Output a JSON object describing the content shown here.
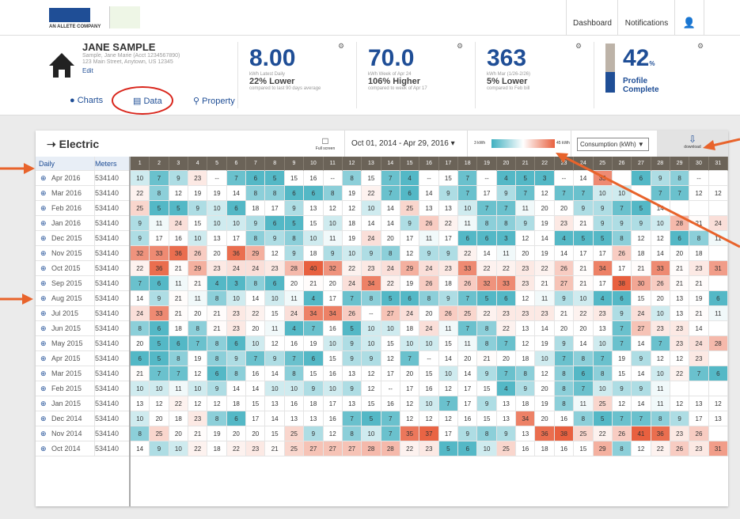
{
  "header": {
    "brand": "AN ALLETE COMPANY",
    "nav": [
      "Dashboard",
      "Notifications"
    ]
  },
  "profile": {
    "name": "JANE SAMPLE",
    "account": "Sample, Jane Marie (Acct 1234567890)",
    "address": "123 Main Street, Anytown, US 12345",
    "edit": "Edit",
    "tabs": [
      "Charts",
      "Data",
      "Property"
    ]
  },
  "stats": [
    {
      "value": "8.00",
      "label": "kWh Latest Daily",
      "change": "22% Lower",
      "note": "compared to last 90 days average"
    },
    {
      "value": "70.0",
      "label": "kWh Week of Apr 24",
      "change": "106% Higher",
      "note": "compared to week of Apr 17"
    },
    {
      "value": "363",
      "label": "kWh Mar (1/26-2/26)",
      "change": "5% Lower",
      "note": "compared to Feb bill"
    }
  ],
  "completion": {
    "value": 42,
    "unit": "%",
    "label": [
      "Profile",
      "Complete"
    ]
  },
  "toolbar": {
    "title": "Electric",
    "fullscreen": "Full screen",
    "date_range": "Oct 01, 2014 - Apr 29, 2016",
    "scale_min": {
      "value": 3,
      "label": "3 kWh"
    },
    "scale_max": {
      "value": 45,
      "label": "45 kWh"
    },
    "measure": "Consumption (kWh)",
    "download": "download"
  },
  "table": {
    "period_header": "Daily",
    "meter_header": "Meters",
    "days": [
      1,
      2,
      3,
      4,
      5,
      6,
      7,
      8,
      9,
      10,
      11,
      12,
      13,
      14,
      15,
      16,
      17,
      18,
      19,
      20,
      21,
      22,
      23,
      24,
      25,
      26,
      27,
      28,
      29,
      30,
      31
    ],
    "rows": [
      {
        "period": "Apr 2016",
        "meter": "534140",
        "values": [
          10,
          7,
          9,
          23,
          "--",
          7,
          6,
          5,
          15,
          16,
          "--",
          8,
          15,
          7,
          4,
          "--",
          15,
          7,
          "--",
          4,
          5,
          3,
          "--",
          14,
          33,
          null,
          6,
          9,
          8,
          "--",
          null
        ]
      },
      {
        "period": "Mar 2016",
        "meter": "534140",
        "values": [
          22,
          8,
          12,
          19,
          19,
          14,
          8,
          8,
          6,
          6,
          8,
          19,
          22,
          7,
          6,
          14,
          9,
          7,
          17,
          9,
          7,
          12,
          7,
          7,
          10,
          10,
          null,
          7,
          7,
          12,
          12
        ]
      },
      {
        "period": "Feb 2016",
        "meter": "534140",
        "values": [
          25,
          5,
          5,
          9,
          10,
          6,
          18,
          17,
          9,
          13,
          12,
          12,
          10,
          14,
          25,
          13,
          13,
          10,
          7,
          7,
          11,
          20,
          20,
          9,
          9,
          7,
          5,
          14,
          null,
          null,
          null
        ]
      },
      {
        "period": "Jan 2016",
        "meter": "534140",
        "values": [
          9,
          11,
          24,
          15,
          10,
          10,
          9,
          6,
          5,
          15,
          10,
          18,
          14,
          14,
          9,
          26,
          22,
          11,
          8,
          8,
          9,
          19,
          23,
          21,
          9,
          9,
          9,
          10,
          28,
          21,
          24
        ]
      },
      {
        "period": "Dec 2015",
        "meter": "534140",
        "values": [
          9,
          17,
          16,
          10,
          13,
          17,
          8,
          9,
          8,
          10,
          11,
          19,
          24,
          20,
          17,
          11,
          17,
          6,
          6,
          3,
          12,
          14,
          4,
          5,
          5,
          8,
          12,
          12,
          6,
          8,
          11
        ]
      },
      {
        "period": "Nov 2015",
        "meter": "534140",
        "values": [
          32,
          33,
          36,
          26,
          20,
          36,
          29,
          12,
          9,
          18,
          9,
          10,
          9,
          8,
          12,
          9,
          9,
          22,
          14,
          11,
          20,
          19,
          14,
          17,
          17,
          26,
          18,
          14,
          20,
          18,
          null
        ]
      },
      {
        "period": "Oct 2015",
        "meter": "534140",
        "values": [
          22,
          36,
          21,
          29,
          23,
          24,
          24,
          23,
          28,
          40,
          32,
          22,
          23,
          24,
          29,
          24,
          23,
          33,
          22,
          22,
          23,
          22,
          26,
          21,
          34,
          17,
          21,
          33,
          21,
          23,
          31
        ]
      },
      {
        "period": "Sep 2015",
        "meter": "534140",
        "values": [
          7,
          6,
          11,
          21,
          4,
          3,
          8,
          6,
          20,
          21,
          20,
          24,
          34,
          22,
          19,
          26,
          18,
          26,
          32,
          33,
          23,
          21,
          27,
          21,
          17,
          38,
          30,
          26,
          21,
          21,
          null
        ]
      },
      {
        "period": "Aug 2015",
        "meter": "534140",
        "values": [
          14,
          9,
          21,
          11,
          8,
          10,
          14,
          10,
          11,
          4,
          17,
          7,
          8,
          5,
          6,
          8,
          9,
          7,
          5,
          6,
          12,
          11,
          9,
          10,
          4,
          6,
          15,
          20,
          13,
          19,
          6
        ]
      },
      {
        "period": "Jul 2015",
        "meter": "534140",
        "values": [
          24,
          33,
          21,
          20,
          21,
          23,
          22,
          15,
          24,
          34,
          34,
          26,
          "--",
          27,
          24,
          20,
          26,
          25,
          22,
          23,
          23,
          23,
          21,
          22,
          23,
          9,
          24,
          10,
          13,
          21,
          11
        ]
      },
      {
        "period": "Jun 2015",
        "meter": "534140",
        "values": [
          8,
          6,
          18,
          8,
          21,
          23,
          20,
          11,
          4,
          7,
          16,
          5,
          10,
          10,
          18,
          24,
          11,
          7,
          8,
          22,
          13,
          14,
          20,
          20,
          13,
          7,
          27,
          23,
          23,
          14,
          null
        ]
      },
      {
        "period": "May 2015",
        "meter": "534140",
        "values": [
          20,
          5,
          6,
          7,
          8,
          6,
          10,
          12,
          16,
          19,
          10,
          9,
          10,
          15,
          10,
          10,
          15,
          11,
          8,
          7,
          12,
          19,
          9,
          14,
          10,
          7,
          14,
          7,
          23,
          24,
          28
        ]
      },
      {
        "period": "Apr 2015",
        "meter": "534140",
        "values": [
          6,
          5,
          8,
          19,
          8,
          9,
          7,
          9,
          7,
          6,
          15,
          9,
          9,
          12,
          7,
          "--",
          14,
          20,
          21,
          20,
          18,
          10,
          7,
          8,
          7,
          19,
          9,
          12,
          12,
          23,
          null
        ]
      },
      {
        "period": "Mar 2015",
        "meter": "534140",
        "values": [
          21,
          7,
          7,
          12,
          6,
          8,
          16,
          14,
          8,
          15,
          16,
          13,
          12,
          17,
          20,
          15,
          10,
          14,
          9,
          7,
          8,
          12,
          8,
          6,
          8,
          15,
          14,
          10,
          22,
          7,
          6
        ]
      },
      {
        "period": "Feb 2015",
        "meter": "534140",
        "values": [
          10,
          10,
          11,
          10,
          9,
          14,
          14,
          10,
          10,
          9,
          10,
          9,
          12,
          "--",
          17,
          16,
          12,
          17,
          15,
          4,
          9,
          20,
          8,
          7,
          10,
          9,
          9,
          11,
          null,
          null,
          null
        ]
      },
      {
        "period": "Jan 2015",
        "meter": "534140",
        "values": [
          13,
          12,
          22,
          12,
          12,
          18,
          15,
          13,
          16,
          18,
          17,
          13,
          15,
          16,
          12,
          10,
          7,
          17,
          9,
          13,
          18,
          19,
          8,
          11,
          25,
          12,
          14,
          11,
          12,
          13,
          12
        ]
      },
      {
        "period": "Dec 2014",
        "meter": "534140",
        "values": [
          10,
          20,
          18,
          23,
          8,
          6,
          17,
          14,
          13,
          13,
          16,
          7,
          5,
          7,
          12,
          12,
          12,
          16,
          15,
          13,
          34,
          20,
          16,
          8,
          5,
          7,
          7,
          8,
          9,
          17,
          13
        ]
      },
      {
        "period": "Nov 2014",
        "meter": "534140",
        "values": [
          8,
          25,
          20,
          21,
          19,
          20,
          20,
          15,
          25,
          9,
          12,
          8,
          10,
          7,
          35,
          37,
          17,
          9,
          8,
          9,
          13,
          36,
          38,
          25,
          22,
          26,
          41,
          36,
          23,
          26,
          null
        ]
      },
      {
        "period": "Oct 2014",
        "meter": "534140",
        "values": [
          14,
          9,
          10,
          22,
          18,
          22,
          23,
          21,
          25,
          27,
          27,
          27,
          28,
          28,
          22,
          23,
          5,
          6,
          10,
          25,
          16,
          18,
          16,
          15,
          29,
          8,
          12,
          22,
          26,
          23,
          31
        ]
      }
    ]
  }
}
